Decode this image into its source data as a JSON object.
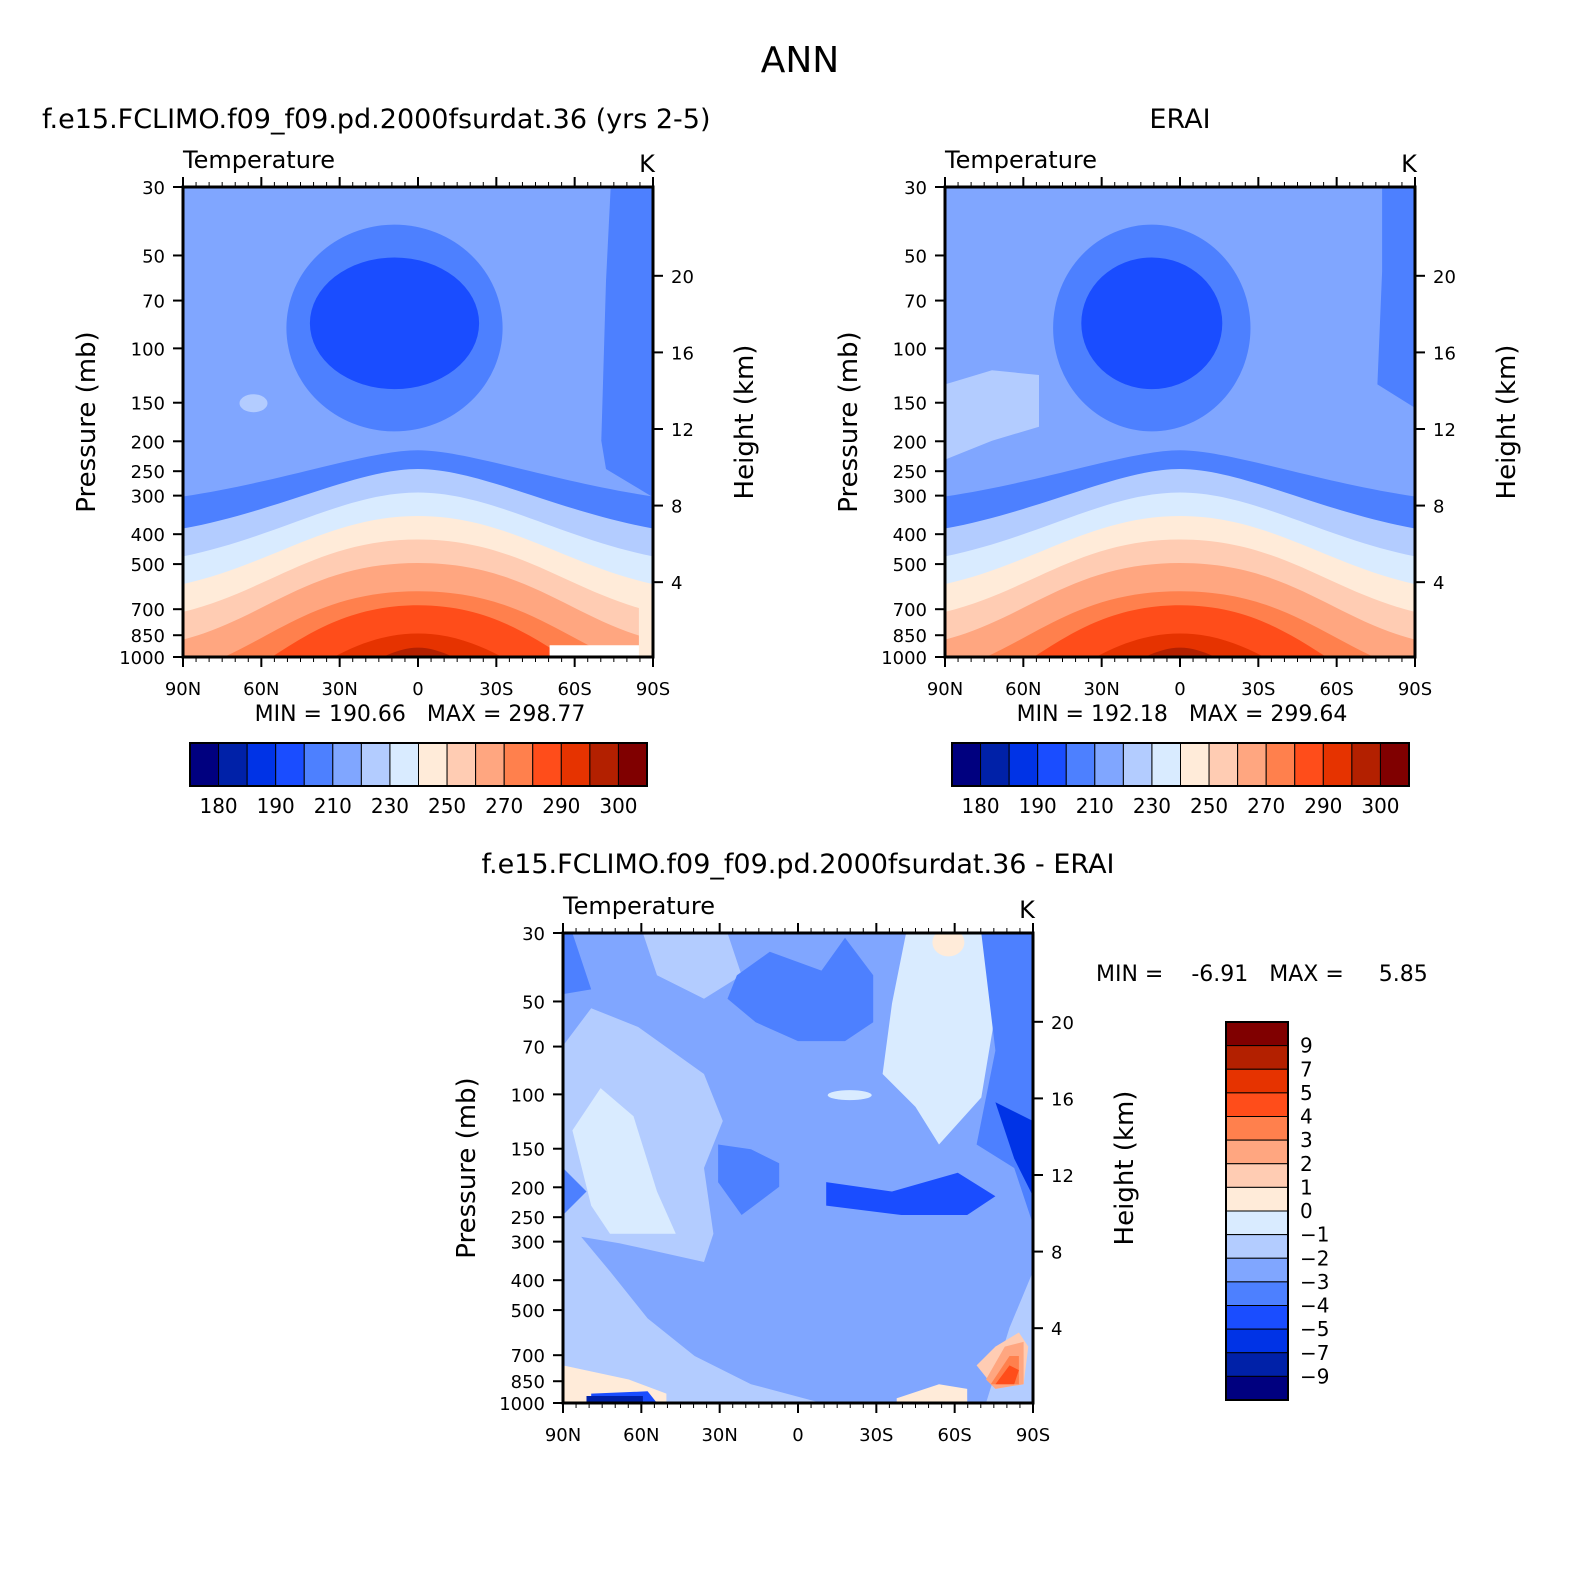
{
  "page": {
    "title": "ANN"
  },
  "panels": [
    {
      "id": "model",
      "header": "f.e15.FCLIMO.f09_f09.pd.2000fsurdat.36 (yrs 2-5)",
      "left_label": "Temperature",
      "units": "K",
      "stats": "MIN = 190.66   MAX = 298.77"
    },
    {
      "id": "obs",
      "header": "ERAI",
      "left_label": "Temperature",
      "units": "K",
      "stats": "MIN = 192.18   MAX = 299.64"
    },
    {
      "id": "diff",
      "header": "f.e15.FCLIMO.f09_f09.pd.2000fsurdat.36 - ERAI",
      "left_label": "Temperature",
      "units": "K",
      "stats": "MIN =    -6.91   MAX =     5.85"
    }
  ],
  "colors": {
    "abs_levels": [
      "#00007f",
      "#0021a8",
      "#0033e6",
      "#1a4dff",
      "#4d80ff",
      "#80a6ff",
      "#b3ccff",
      "#d9ebff",
      "#ffebd9",
      "#ffccb3",
      "#ffa680",
      "#ff804d",
      "#ff4d1a",
      "#e63300",
      "#b32000",
      "#800000"
    ],
    "diff_levels": [
      "#00007f",
      "#0021a8",
      "#0033e6",
      "#1a4dff",
      "#4d80ff",
      "#80a6ff",
      "#b3ccff",
      "#d9ebff",
      "#ffebd9",
      "#ffccb3",
      "#ffa680",
      "#ff804d",
      "#ff4d1a",
      "#e63300",
      "#b32000",
      "#800000"
    ]
  },
  "chart_data": [
    {
      "type": "heatmap",
      "title": "f.e15.FCLIMO.f09_f09.pd.2000fsurdat.36 (yrs 2-5)",
      "xlabel": "",
      "ylabel": "Pressure (mb)",
      "y2label": "Height (km)",
      "x_ticks": [
        "90N",
        "60N",
        "30N",
        "0",
        "30S",
        "60S",
        "90S"
      ],
      "y_ticks": [
        30,
        50,
        70,
        100,
        150,
        200,
        250,
        300,
        400,
        500,
        700,
        850,
        1000
      ],
      "y2_ticks": [
        20,
        16,
        12,
        8,
        4
      ],
      "y_scale": "log",
      "ylim": [
        1000,
        30
      ],
      "contour_levels": [
        180,
        185,
        190,
        200,
        210,
        220,
        230,
        240,
        250,
        260,
        270,
        280,
        290,
        295,
        300
      ],
      "colorbar_labels": [
        "180",
        "190",
        "210",
        "230",
        "250",
        "270",
        "290",
        "300"
      ],
      "min": 190.66,
      "max": 298.77
    },
    {
      "type": "heatmap",
      "title": "ERAI",
      "xlabel": "",
      "ylabel": "Pressure (mb)",
      "y2label": "Height (km)",
      "x_ticks": [
        "90N",
        "60N",
        "30N",
        "0",
        "30S",
        "60S",
        "90S"
      ],
      "y_ticks": [
        30,
        50,
        70,
        100,
        150,
        200,
        250,
        300,
        400,
        500,
        700,
        850,
        1000
      ],
      "y2_ticks": [
        20,
        16,
        12,
        8,
        4
      ],
      "y_scale": "log",
      "ylim": [
        1000,
        30
      ],
      "contour_levels": [
        180,
        185,
        190,
        200,
        210,
        220,
        230,
        240,
        250,
        260,
        270,
        280,
        290,
        295,
        300
      ],
      "colorbar_labels": [
        "180",
        "190",
        "210",
        "230",
        "250",
        "270",
        "290",
        "300"
      ],
      "min": 192.18,
      "max": 299.64
    },
    {
      "type": "heatmap",
      "title": "f.e15.FCLIMO.f09_f09.pd.2000fsurdat.36 - ERAI",
      "xlabel": "",
      "ylabel": "Pressure (mb)",
      "y2label": "Height (km)",
      "x_ticks": [
        "90N",
        "60N",
        "30N",
        "0",
        "30S",
        "60S",
        "90S"
      ],
      "y_ticks": [
        30,
        50,
        70,
        100,
        150,
        200,
        250,
        300,
        400,
        500,
        700,
        850,
        1000
      ],
      "y2_ticks": [
        20,
        16,
        12,
        8,
        4
      ],
      "y_scale": "log",
      "ylim": [
        1000,
        30
      ],
      "colorbar_labels": [
        "9",
        "7",
        "5",
        "4",
        "3",
        "2",
        "1",
        "0",
        "-1",
        "-2",
        "-3",
        "-4",
        "-5",
        "-7",
        "-9"
      ],
      "min": -6.91,
      "max": 5.85
    }
  ]
}
